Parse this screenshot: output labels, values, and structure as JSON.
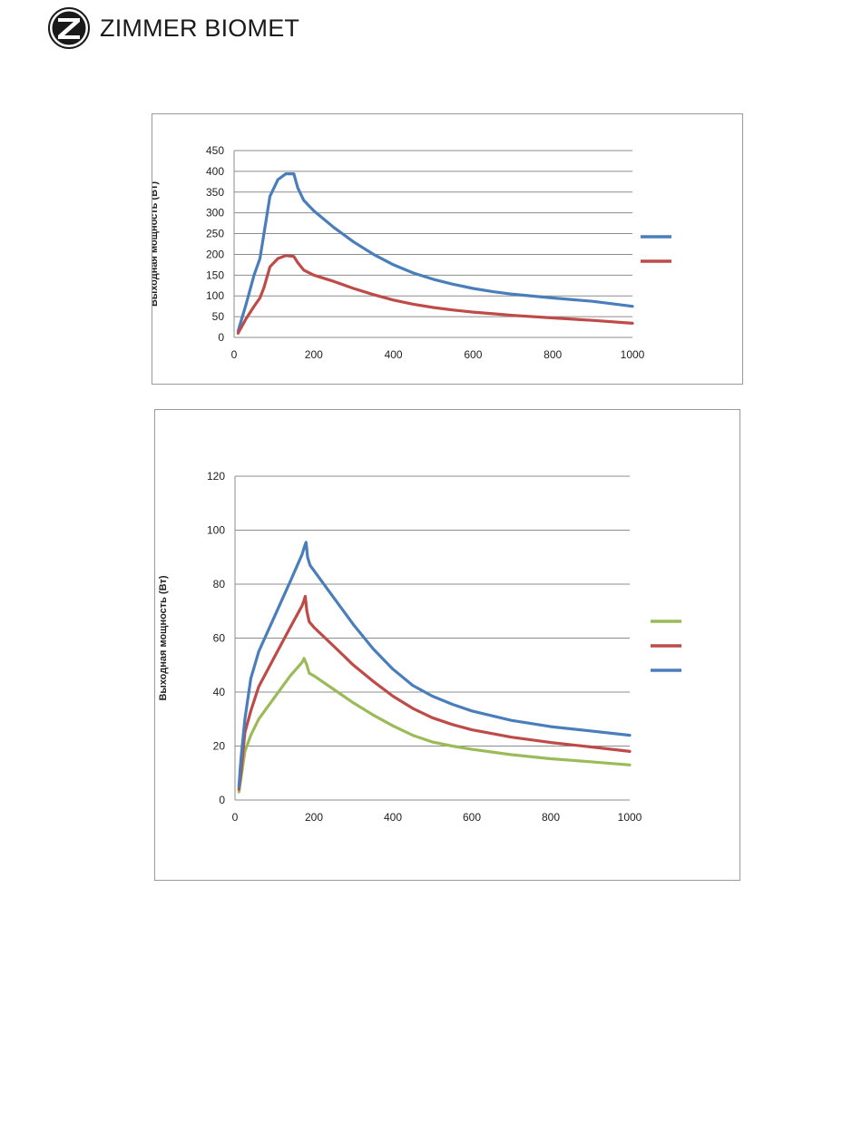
{
  "header": {
    "brand": "ZIMMER BIOMET"
  },
  "chart_data": [
    {
      "type": "line",
      "ylabel": "Выходная мощность (Вт)",
      "xlabel": "",
      "xlim": [
        0,
        1000
      ],
      "ylim": [
        0,
        450
      ],
      "xticks": [
        0,
        200,
        400,
        600,
        800,
        1000
      ],
      "yticks": [
        0,
        50,
        100,
        150,
        200,
        250,
        300,
        350,
        400,
        450
      ],
      "grid": true,
      "legend": "right",
      "series": [
        {
          "color": "#4a7ebb",
          "points": [
            [
              10,
              15
            ],
            [
              30,
              80
            ],
            [
              50,
              150
            ],
            [
              65,
              190
            ],
            [
              75,
              250
            ],
            [
              90,
              340
            ],
            [
              110,
              380
            ],
            [
              130,
              394
            ],
            [
              150,
              394
            ],
            [
              160,
              360
            ],
            [
              175,
              330
            ],
            [
              200,
              305
            ],
            [
              250,
              265
            ],
            [
              300,
              230
            ],
            [
              350,
              200
            ],
            [
              400,
              175
            ],
            [
              450,
              155
            ],
            [
              500,
              140
            ],
            [
              550,
              128
            ],
            [
              600,
              118
            ],
            [
              650,
              110
            ],
            [
              700,
              104
            ],
            [
              800,
              95
            ],
            [
              900,
              87
            ],
            [
              1000,
              75
            ]
          ]
        },
        {
          "color": "#be4b48",
          "points": [
            [
              10,
              10
            ],
            [
              30,
              45
            ],
            [
              50,
              75
            ],
            [
              65,
              95
            ],
            [
              75,
              120
            ],
            [
              90,
              170
            ],
            [
              110,
              190
            ],
            [
              130,
              197
            ],
            [
              150,
              195
            ],
            [
              160,
              180
            ],
            [
              175,
              162
            ],
            [
              200,
              150
            ],
            [
              250,
              135
            ],
            [
              300,
              118
            ],
            [
              350,
              103
            ],
            [
              400,
              90
            ],
            [
              450,
              80
            ],
            [
              500,
              72
            ],
            [
              550,
              66
            ],
            [
              600,
              61
            ],
            [
              650,
              57
            ],
            [
              700,
              53
            ],
            [
              800,
              47
            ],
            [
              900,
              41
            ],
            [
              1000,
              34
            ]
          ]
        }
      ]
    },
    {
      "type": "line",
      "ylabel": "Выходная мощность (Вт)",
      "xlabel": "",
      "xlim": [
        0,
        1000
      ],
      "ylim": [
        0,
        120
      ],
      "xticks": [
        0,
        200,
        400,
        600,
        800,
        1000
      ],
      "yticks": [
        0,
        20,
        40,
        60,
        80,
        100,
        120
      ],
      "grid": true,
      "legend": "right",
      "series": [
        {
          "color": "#9bbb59",
          "points": [
            [
              10,
              3
            ],
            [
              15,
              8
            ],
            [
              25,
              18
            ],
            [
              40,
              24
            ],
            [
              60,
              30
            ],
            [
              100,
              38
            ],
            [
              140,
              46
            ],
            [
              170,
              51
            ],
            [
              175,
              52.5
            ],
            [
              182,
              50
            ],
            [
              188,
              47
            ],
            [
              200,
              46
            ],
            [
              250,
              41
            ],
            [
              300,
              36
            ],
            [
              350,
              31.5
            ],
            [
              400,
              27.5
            ],
            [
              450,
              24
            ],
            [
              500,
              21.5
            ],
            [
              550,
              20
            ],
            [
              600,
              18.8
            ],
            [
              700,
              16.8
            ],
            [
              800,
              15.3
            ],
            [
              900,
              14.2
            ],
            [
              1000,
              13
            ]
          ]
        },
        {
          "color": "#be4b48",
          "points": [
            [
              10,
              4
            ],
            [
              15,
              10
            ],
            [
              25,
              25
            ],
            [
              40,
              33
            ],
            [
              60,
              42
            ],
            [
              100,
              53
            ],
            [
              140,
              64
            ],
            [
              170,
              72
            ],
            [
              175,
              74
            ],
            [
              178,
              75.5
            ],
            [
              182,
              70
            ],
            [
              188,
              66
            ],
            [
              200,
              64
            ],
            [
              250,
              57
            ],
            [
              300,
              50
            ],
            [
              350,
              44
            ],
            [
              400,
              38.5
            ],
            [
              450,
              34
            ],
            [
              500,
              30.5
            ],
            [
              550,
              28
            ],
            [
              600,
              26
            ],
            [
              700,
              23.3
            ],
            [
              800,
              21.3
            ],
            [
              900,
              19.7
            ],
            [
              1000,
              18
            ]
          ]
        },
        {
          "color": "#4a7ebb",
          "points": [
            [
              10,
              5
            ],
            [
              15,
              15
            ],
            [
              25,
              30
            ],
            [
              40,
              45
            ],
            [
              60,
              55
            ],
            [
              100,
              68
            ],
            [
              140,
              81
            ],
            [
              170,
              91
            ],
            [
              176,
              94
            ],
            [
              180,
              95.5
            ],
            [
              184,
              90
            ],
            [
              190,
              87
            ],
            [
              200,
              85
            ],
            [
              250,
              75
            ],
            [
              300,
              65
            ],
            [
              350,
              56
            ],
            [
              400,
              48.5
            ],
            [
              450,
              42.5
            ],
            [
              500,
              38.5
            ],
            [
              550,
              35.5
            ],
            [
              600,
              33
            ],
            [
              700,
              29.5
            ],
            [
              800,
              27.2
            ],
            [
              900,
              25.6
            ],
            [
              1000,
              24
            ]
          ]
        }
      ]
    }
  ]
}
